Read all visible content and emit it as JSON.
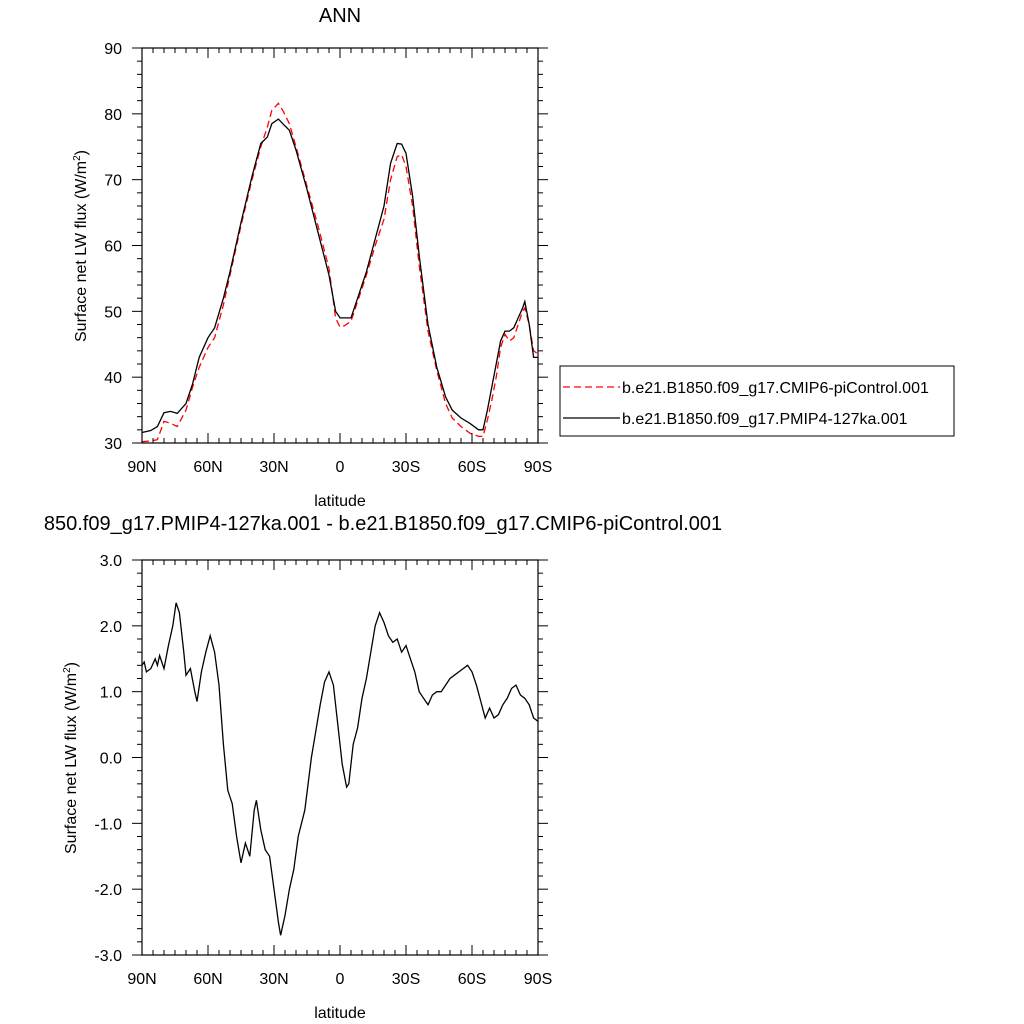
{
  "chart_data": [
    {
      "type": "line",
      "title": "ANN",
      "xlabel": "latitude",
      "ylabel": "Surface net LW flux (W/m²)",
      "ylabel_main": "Surface net LW flux (W/m",
      "ylabel_sup": "2",
      "ylabel_close": ")",
      "xlim": [
        90,
        -90
      ],
      "ylim": [
        30,
        90
      ],
      "x_ticks": [
        {
          "value": 90,
          "label": "90N"
        },
        {
          "value": 60,
          "label": "60N"
        },
        {
          "value": 30,
          "label": "30N"
        },
        {
          "value": 0,
          "label": "0"
        },
        {
          "value": -30,
          "label": "30S"
        },
        {
          "value": -60,
          "label": "60S"
        },
        {
          "value": -90,
          "label": "90S"
        }
      ],
      "y_ticks": [
        {
          "value": 30,
          "label": "30"
        },
        {
          "value": 40,
          "label": "40"
        },
        {
          "value": 50,
          "label": "50"
        },
        {
          "value": 60,
          "label": "60"
        },
        {
          "value": 70,
          "label": "70"
        },
        {
          "value": 80,
          "label": "80"
        },
        {
          "value": 90,
          "label": "90"
        }
      ],
      "legend_position": "outside-right",
      "series": [
        {
          "name": "b.e21.B1850.f09_g17.CMIP6-piControl.001",
          "color": "#ff0000",
          "dash": "dashed",
          "points": [
            [
              90,
              30.2
            ],
            [
              86,
              30.3
            ],
            [
              83,
              30.5
            ],
            [
              80,
              33.3
            ],
            [
              77,
              33.0
            ],
            [
              74,
              32.5
            ],
            [
              70,
              35.0
            ],
            [
              67,
              38.5
            ],
            [
              64,
              41.5
            ],
            [
              60,
              44.5
            ],
            [
              57,
              46.0
            ],
            [
              53,
              51.0
            ],
            [
              50,
              55.5
            ],
            [
              45,
              63.0
            ],
            [
              40,
              70.0
            ],
            [
              36,
              75.0
            ],
            [
              33,
              78.0
            ],
            [
              31,
              80.5
            ],
            [
              28,
              81.6
            ],
            [
              26,
              80.5
            ],
            [
              23,
              78.5
            ],
            [
              20,
              75.0
            ],
            [
              15,
              69.0
            ],
            [
              10,
              63.0
            ],
            [
              5,
              56.5
            ],
            [
              2,
              49.0
            ],
            [
              0,
              47.6
            ],
            [
              -2,
              47.8
            ],
            [
              -5,
              48.5
            ],
            [
              -8,
              51.5
            ],
            [
              -12,
              55.5
            ],
            [
              -16,
              60.0
            ],
            [
              -20,
              64.0
            ],
            [
              -23,
              70.0
            ],
            [
              -26,
              73.5
            ],
            [
              -28,
              73.8
            ],
            [
              -30,
              72.0
            ],
            [
              -33,
              66.0
            ],
            [
              -36,
              57.0
            ],
            [
              -40,
              47.0
            ],
            [
              -44,
              41.0
            ],
            [
              -48,
              36.0
            ],
            [
              -51,
              33.8
            ],
            [
              -55,
              32.5
            ],
            [
              -59,
              31.5
            ],
            [
              -63,
              31.0
            ],
            [
              -65,
              31.0
            ],
            [
              -67,
              33.5
            ],
            [
              -69,
              36.5
            ],
            [
              -71,
              40.0
            ],
            [
              -73,
              44.5
            ],
            [
              -75,
              46.5
            ],
            [
              -77,
              45.5
            ],
            [
              -79,
              46.0
            ],
            [
              -81,
              48.0
            ],
            [
              -83,
              50.0
            ],
            [
              -84,
              50.5
            ],
            [
              -86,
              48.0
            ],
            [
              -88,
              44.0
            ],
            [
              -90,
              43.5
            ]
          ]
        },
        {
          "name": "b.e21.B1850.f09_g17.PMIP4-127ka.001",
          "color": "#000000",
          "dash": "solid",
          "points": [
            [
              90,
              31.6
            ],
            [
              86,
              31.9
            ],
            [
              83,
              32.5
            ],
            [
              80,
              34.6
            ],
            [
              77,
              34.8
            ],
            [
              74,
              34.5
            ],
            [
              70,
              36.0
            ],
            [
              67,
              39.0
            ],
            [
              64,
              43.0
            ],
            [
              60,
              46.0
            ],
            [
              57,
              47.5
            ],
            [
              53,
              52.0
            ],
            [
              50,
              56.0
            ],
            [
              45,
              63.5
            ],
            [
              40,
              70.5
            ],
            [
              36,
              75.5
            ],
            [
              33,
              76.5
            ],
            [
              31,
              78.5
            ],
            [
              28,
              79.2
            ],
            [
              26,
              78.5
            ],
            [
              23,
              77.5
            ],
            [
              20,
              74.5
            ],
            [
              15,
              68.5
            ],
            [
              10,
              62.0
            ],
            [
              5,
              55.5
            ],
            [
              2,
              50.0
            ],
            [
              0,
              49.0
            ],
            [
              -2,
              49.0
            ],
            [
              -5,
              49.0
            ],
            [
              -8,
              52.0
            ],
            [
              -12,
              56.0
            ],
            [
              -16,
              61.0
            ],
            [
              -20,
              66.0
            ],
            [
              -23,
              72.5
            ],
            [
              -26,
              75.5
            ],
            [
              -28,
              75.4
            ],
            [
              -30,
              74.0
            ],
            [
              -33,
              67.5
            ],
            [
              -36,
              58.5
            ],
            [
              -40,
              48.0
            ],
            [
              -44,
              41.5
            ],
            [
              -48,
              37.0
            ],
            [
              -51,
              35.0
            ],
            [
              -55,
              33.8
            ],
            [
              -59,
              33.0
            ],
            [
              -63,
              32.0
            ],
            [
              -65,
              32.0
            ],
            [
              -67,
              35.0
            ],
            [
              -69,
              38.5
            ],
            [
              -71,
              42.0
            ],
            [
              -73,
              45.5
            ],
            [
              -75,
              47.0
            ],
            [
              -77,
              47.0
            ],
            [
              -79,
              47.5
            ],
            [
              -81,
              49.0
            ],
            [
              -83,
              50.5
            ],
            [
              -84,
              51.5
            ],
            [
              -86,
              48.0
            ],
            [
              -88,
              43.0
            ],
            [
              -90,
              43.0
            ]
          ]
        }
      ]
    },
    {
      "type": "line",
      "title": "850.f09_g17.PMIP4-127ka.001 - b.e21.B1850.f09_g17.CMIP6-piControl.001",
      "xlabel": "latitude",
      "ylabel": "Surface net LW flux (W/m²)",
      "ylabel_main": "Surface net LW flux (W/m",
      "ylabel_sup": "2",
      "ylabel_close": ")",
      "xlim": [
        90,
        -90
      ],
      "ylim": [
        -3.0,
        3.0
      ],
      "x_ticks": [
        {
          "value": 90,
          "label": "90N"
        },
        {
          "value": 60,
          "label": "60N"
        },
        {
          "value": 30,
          "label": "30N"
        },
        {
          "value": 0,
          "label": "0"
        },
        {
          "value": -30,
          "label": "30S"
        },
        {
          "value": -60,
          "label": "60S"
        },
        {
          "value": -90,
          "label": "90S"
        }
      ],
      "y_ticks": [
        {
          "value": 3,
          "label": "3.0"
        },
        {
          "value": 2,
          "label": "2.0"
        },
        {
          "value": 1,
          "label": "1.0"
        },
        {
          "value": 0,
          "label": "0.0"
        },
        {
          "value": -1,
          "label": "-1.0"
        },
        {
          "value": -2,
          "label": "-2.0"
        },
        {
          "value": -3,
          "label": "-3.0"
        }
      ],
      "series": [
        {
          "color": "#000000",
          "dash": "solid",
          "points": [
            [
              90,
              1.4
            ],
            [
              89,
              1.45
            ],
            [
              88,
              1.3
            ],
            [
              86,
              1.35
            ],
            [
              84,
              1.5
            ],
            [
              83,
              1.4
            ],
            [
              82,
              1.55
            ],
            [
              80,
              1.35
            ],
            [
              78,
              1.7
            ],
            [
              76,
              2.0
            ],
            [
              74.5,
              2.35
            ],
            [
              73,
              2.2
            ],
            [
              71,
              1.6
            ],
            [
              70,
              1.25
            ],
            [
              68,
              1.35
            ],
            [
              66,
              1.0
            ],
            [
              65,
              0.85
            ],
            [
              63,
              1.3
            ],
            [
              61,
              1.6
            ],
            [
              59,
              1.85
            ],
            [
              57,
              1.6
            ],
            [
              55,
              1.1
            ],
            [
              53,
              0.2
            ],
            [
              51,
              -0.5
            ],
            [
              49,
              -0.7
            ],
            [
              47,
              -1.2
            ],
            [
              45,
              -1.6
            ],
            [
              43,
              -1.3
            ],
            [
              41,
              -1.5
            ],
            [
              39,
              -0.8
            ],
            [
              38,
              -0.65
            ],
            [
              36,
              -1.1
            ],
            [
              34,
              -1.4
            ],
            [
              32,
              -1.5
            ],
            [
              30,
              -2.0
            ],
            [
              28,
              -2.5
            ],
            [
              27,
              -2.7
            ],
            [
              25,
              -2.4
            ],
            [
              23,
              -2.0
            ],
            [
              21,
              -1.7
            ],
            [
              19,
              -1.2
            ],
            [
              16,
              -0.8
            ],
            [
              13,
              0.0
            ],
            [
              11,
              0.4
            ],
            [
              9,
              0.8
            ],
            [
              7,
              1.15
            ],
            [
              5,
              1.3
            ],
            [
              3,
              1.1
            ],
            [
              1,
              0.5
            ],
            [
              -1,
              -0.1
            ],
            [
              -3,
              -0.45
            ],
            [
              -4,
              -0.4
            ],
            [
              -6,
              0.2
            ],
            [
              -8,
              0.45
            ],
            [
              -10,
              0.9
            ],
            [
              -12,
              1.2
            ],
            [
              -14,
              1.6
            ],
            [
              -16,
              2.0
            ],
            [
              -18,
              2.2
            ],
            [
              -20,
              2.05
            ],
            [
              -22,
              1.85
            ],
            [
              -24,
              1.75
            ],
            [
              -26,
              1.8
            ],
            [
              -28,
              1.6
            ],
            [
              -30,
              1.7
            ],
            [
              -32,
              1.5
            ],
            [
              -34,
              1.3
            ],
            [
              -36,
              1.0
            ],
            [
              -38,
              0.9
            ],
            [
              -40,
              0.8
            ],
            [
              -42,
              0.95
            ],
            [
              -44,
              1.0
            ],
            [
              -46,
              1.0
            ],
            [
              -48,
              1.1
            ],
            [
              -50,
              1.2
            ],
            [
              -52,
              1.25
            ],
            [
              -54,
              1.3
            ],
            [
              -56,
              1.35
            ],
            [
              -58,
              1.4
            ],
            [
              -60,
              1.3
            ],
            [
              -62,
              1.1
            ],
            [
              -64,
              0.85
            ],
            [
              -66,
              0.6
            ],
            [
              -68,
              0.75
            ],
            [
              -70,
              0.6
            ],
            [
              -72,
              0.65
            ],
            [
              -74,
              0.8
            ],
            [
              -76,
              0.9
            ],
            [
              -78,
              1.05
            ],
            [
              -80,
              1.1
            ],
            [
              -82,
              0.95
            ],
            [
              -84,
              0.9
            ],
            [
              -86,
              0.8
            ],
            [
              -88,
              0.6
            ],
            [
              -90,
              0.55
            ]
          ]
        }
      ]
    }
  ]
}
